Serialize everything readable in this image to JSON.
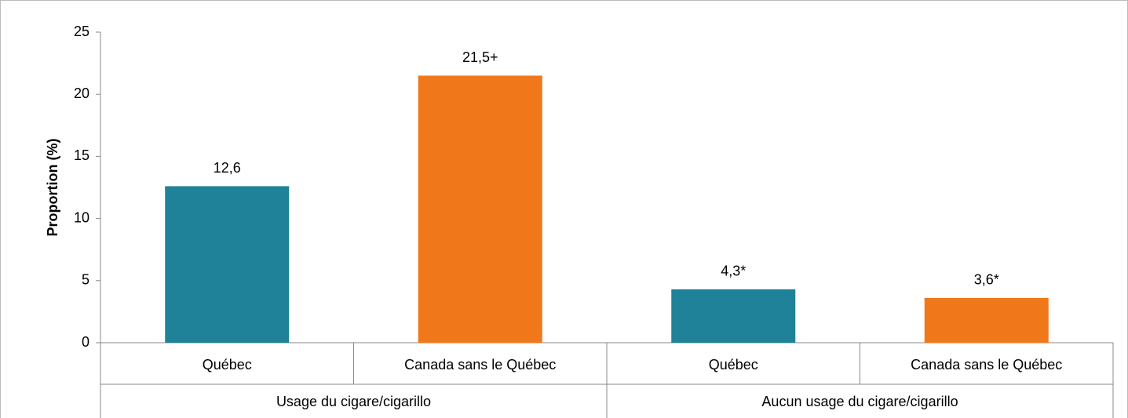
{
  "chart_data": {
    "type": "bar",
    "ylabel": "Proportion (%)",
    "categories": [
      "Québec",
      "Canada sans le Québec",
      "Québec",
      "Canada sans le Québec"
    ],
    "groups": [
      "Usage du cigare/cigarillo",
      "Aucun usage du cigare/cigarillo"
    ],
    "values": [
      12.6,
      21.5,
      4.3,
      3.6
    ],
    "value_labels": [
      "12,6",
      "21,5+",
      "4,3*",
      "3,6*"
    ],
    "colors": [
      "#1f8299",
      "#f0781b",
      "#1f8299",
      "#f0781b"
    ],
    "ylim": [
      0,
      25
    ],
    "yticks": [
      0,
      5,
      10,
      15,
      20,
      25
    ],
    "grid": false
  }
}
